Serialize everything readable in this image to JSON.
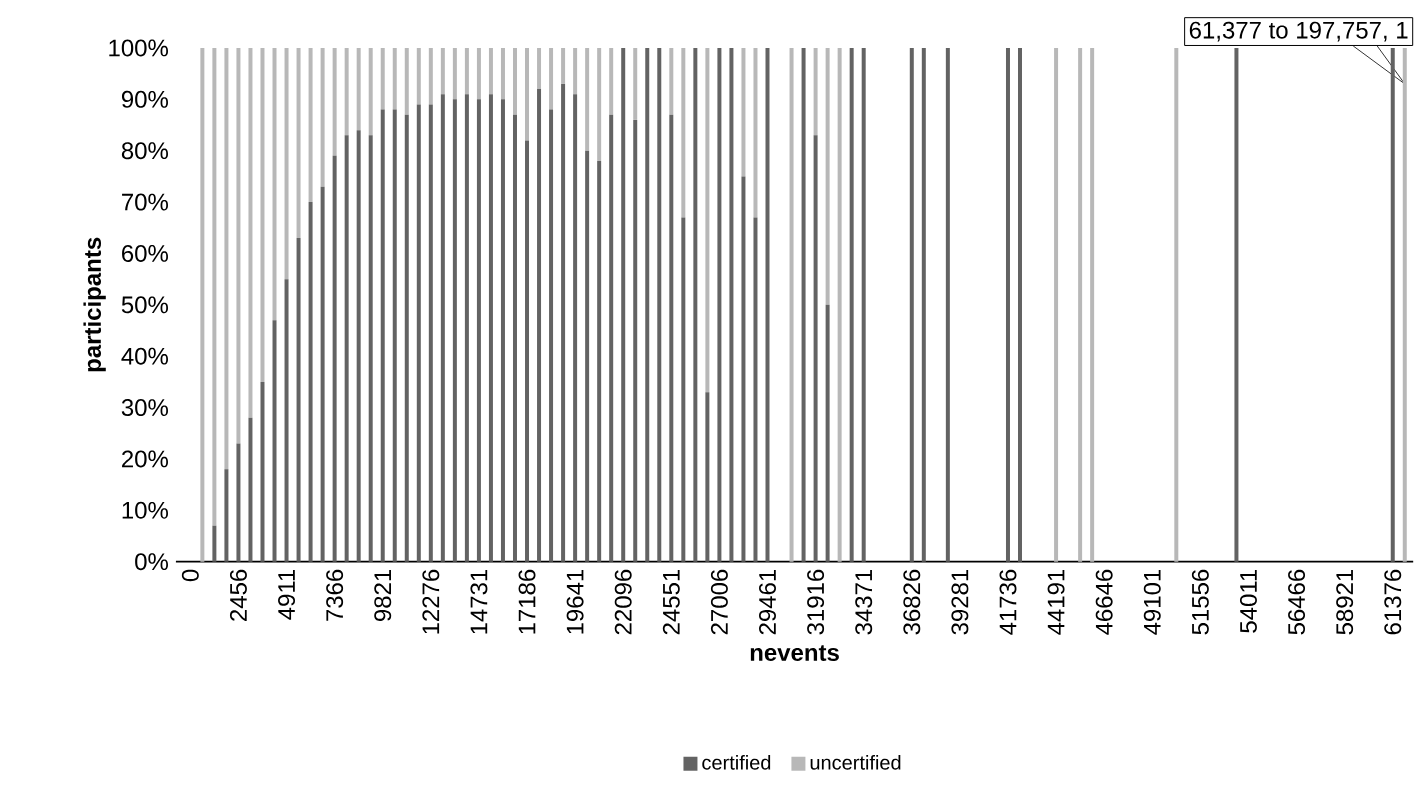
{
  "chart_data": {
    "type": "bar",
    "stacked": true,
    "xlabel": "nevents",
    "ylabel": "participants",
    "categories": [
      "0",
      null,
      null,
      null,
      "2456",
      null,
      null,
      null,
      "4911",
      null,
      null,
      null,
      "7366",
      null,
      null,
      null,
      "9821",
      null,
      null,
      null,
      "12276",
      null,
      null,
      null,
      "14731",
      null,
      null,
      null,
      "17186",
      null,
      null,
      null,
      "19641",
      null,
      null,
      null,
      "22096",
      null,
      null,
      null,
      "24551",
      null,
      null,
      null,
      "27006",
      null,
      null,
      null,
      "29461",
      null,
      null,
      null,
      "31916",
      null,
      null,
      null,
      "34371",
      null,
      null,
      null,
      "36826",
      null,
      null,
      null,
      "39281",
      null,
      null,
      null,
      "41736",
      null,
      null,
      null,
      "44191",
      null,
      null,
      null,
      "46646",
      null,
      null,
      null,
      "49101",
      null,
      null,
      null,
      "51556",
      null,
      null,
      null,
      "54011",
      null,
      null,
      null,
      "56466",
      null,
      null,
      null,
      "58921",
      null,
      null,
      null,
      "61376",
      null
    ],
    "series": [
      {
        "name": "certified",
        "color": "#636363",
        "values": [
          null,
          0,
          7,
          18,
          23,
          28,
          35,
          47,
          55,
          63,
          70,
          73,
          79,
          83,
          84,
          83,
          88,
          88,
          87,
          89,
          89,
          91,
          90,
          91,
          90,
          91,
          90,
          87,
          82,
          92,
          88,
          93,
          91,
          80,
          78,
          87,
          100,
          86,
          100,
          100,
          87,
          67,
          100,
          33,
          100,
          100,
          75,
          67,
          100,
          null,
          0,
          100,
          83,
          50,
          0,
          100,
          100,
          null,
          null,
          null,
          100,
          100,
          null,
          100,
          null,
          null,
          null,
          null,
          100,
          100,
          null,
          null,
          0,
          null,
          0,
          0,
          null,
          null,
          null,
          null,
          null,
          null,
          0,
          null,
          null,
          null,
          null,
          100,
          null,
          null,
          null,
          null,
          null,
          null,
          null,
          null,
          null,
          null,
          null,
          null,
          100,
          0
        ]
      },
      {
        "name": "uncertified",
        "color": "#b8b8b8",
        "values": [
          null,
          100,
          93,
          82,
          77,
          72,
          65,
          53,
          45,
          37,
          30,
          27,
          21,
          17,
          16,
          17,
          12,
          12,
          13,
          11,
          11,
          9,
          10,
          9,
          10,
          9,
          10,
          13,
          18,
          8,
          12,
          7,
          9,
          20,
          22,
          13,
          0,
          14,
          0,
          0,
          13,
          33,
          0,
          67,
          0,
          0,
          25,
          33,
          0,
          null,
          100,
          0,
          17,
          50,
          100,
          0,
          0,
          null,
          null,
          null,
          0,
          0,
          null,
          0,
          null,
          null,
          null,
          null,
          0,
          0,
          null,
          null,
          100,
          null,
          100,
          100,
          null,
          null,
          null,
          null,
          null,
          null,
          100,
          null,
          null,
          null,
          null,
          0,
          null,
          null,
          null,
          null,
          null,
          null,
          null,
          null,
          null,
          null,
          null,
          null,
          0,
          100
        ]
      }
    ],
    "ylim": [
      0,
      100
    ],
    "yticks": [
      {
        "value": 0,
        "label": "0%"
      },
      {
        "value": 10,
        "label": "10%"
      },
      {
        "value": 20,
        "label": "20%"
      },
      {
        "value": 30,
        "label": "30%"
      },
      {
        "value": 40,
        "label": "40%"
      },
      {
        "value": 50,
        "label": "50%"
      },
      {
        "value": 60,
        "label": "60%"
      },
      {
        "value": 70,
        "label": "70%"
      },
      {
        "value": 80,
        "label": "80%"
      },
      {
        "value": 90,
        "label": "90%"
      },
      {
        "value": 100,
        "label": "100%"
      }
    ],
    "legend": "bottom",
    "annotations": [
      "61,377 to 197,757, 1"
    ]
  }
}
